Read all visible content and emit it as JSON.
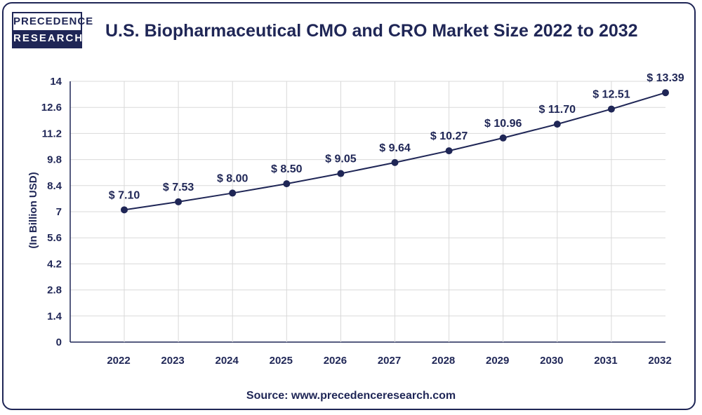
{
  "brand": {
    "line1": "PRECEDENCE",
    "line2": "RESEARCH"
  },
  "chart_data": {
    "type": "line",
    "title": "U.S. Biopharmaceutical CMO and CRO Market Size 2022 to 2032",
    "xlabel": "",
    "ylabel": "(In Billion USD)",
    "categories": [
      "2022",
      "2023",
      "2024",
      "2025",
      "2026",
      "2027",
      "2028",
      "2029",
      "2030",
      "2031",
      "2032"
    ],
    "values": [
      7.1,
      7.53,
      8.0,
      8.5,
      9.05,
      9.64,
      10.27,
      10.96,
      11.7,
      12.51,
      13.39
    ],
    "data_labels": [
      "$ 7.10",
      "$ 7.53",
      "$ 8.00",
      "$ 8.50",
      "$ 9.05",
      "$ 9.64",
      "$ 10.27",
      "$ 10.96",
      "$ 11.70",
      "$ 12.51",
      "$ 13.39"
    ],
    "yticks": [
      0,
      1.4,
      2.8,
      4.2,
      5.6,
      7,
      8.4,
      9.8,
      11.2,
      12.6,
      14
    ],
    "ytick_labels": [
      "0",
      "1.4",
      "2.8",
      "4.2",
      "5.6",
      "7",
      "8.4",
      "9.8",
      "11.2",
      "12.6",
      "14"
    ],
    "ylim": [
      0,
      14
    ],
    "grid": true,
    "line_color": "#1f2656",
    "marker_color": "#1f2656"
  },
  "source": "Source: www.precedenceresearch.com"
}
